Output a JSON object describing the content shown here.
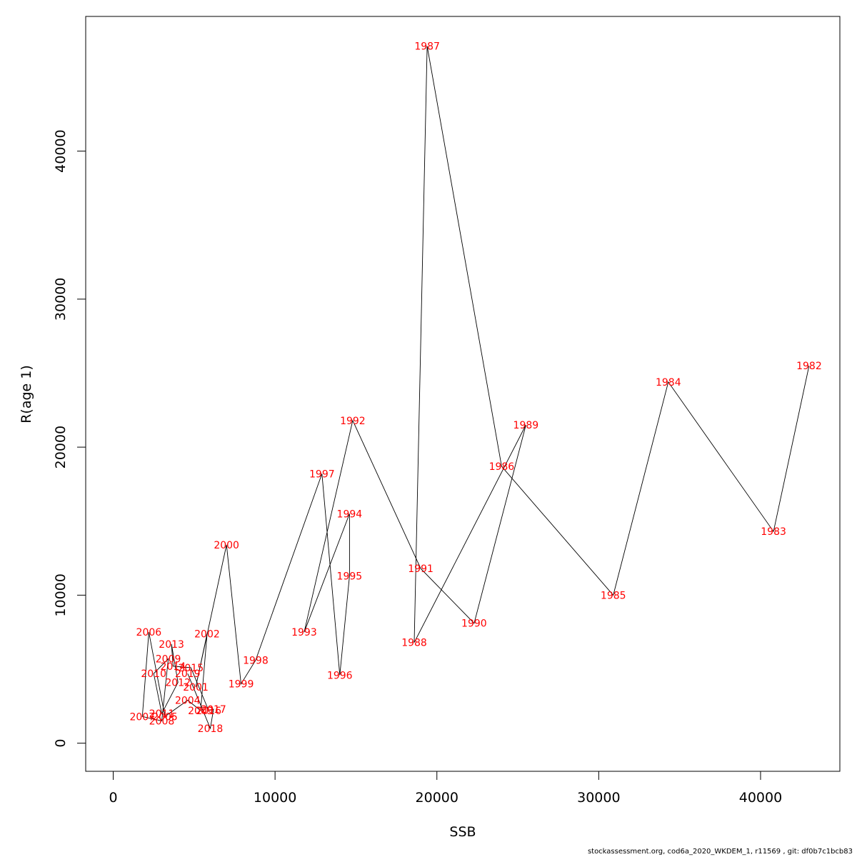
{
  "chart_data": {
    "type": "line",
    "title": "",
    "xlabel": "SSB",
    "ylabel": "R(age 1)",
    "xlim": [
      -1700,
      44900
    ],
    "ylim": [
      -1900,
      49100
    ],
    "xticks": [
      0,
      10000,
      20000,
      30000,
      40000
    ],
    "yticks": [
      0,
      10000,
      20000,
      30000,
      40000
    ],
    "xtick_labels": [
      "0",
      "10000",
      "20000",
      "30000",
      "40000"
    ],
    "ytick_labels": [
      "0",
      "10000",
      "20000",
      "30000",
      "40000"
    ],
    "grid": false,
    "line_color": "#000000",
    "label_color": "#ff0000",
    "points": [
      {
        "year": "1982",
        "x": 43000,
        "y": 25500
      },
      {
        "year": "1983",
        "x": 40800,
        "y": 14300
      },
      {
        "year": "1984",
        "x": 34300,
        "y": 24400
      },
      {
        "year": "1985",
        "x": 30900,
        "y": 10000
      },
      {
        "year": "1986",
        "x": 24000,
        "y": 18700
      },
      {
        "year": "1987",
        "x": 19400,
        "y": 47100
      },
      {
        "year": "1988",
        "x": 18600,
        "y": 6800
      },
      {
        "year": "1989",
        "x": 25500,
        "y": 21500
      },
      {
        "year": "1990",
        "x": 22300,
        "y": 8100
      },
      {
        "year": "1991",
        "x": 19000,
        "y": 11800
      },
      {
        "year": "1992",
        "x": 14800,
        "y": 21800
      },
      {
        "year": "1993",
        "x": 11800,
        "y": 7500
      },
      {
        "year": "1994",
        "x": 14600,
        "y": 15500
      },
      {
        "year": "1995",
        "x": 14600,
        "y": 11300
      },
      {
        "year": "1996",
        "x": 14000,
        "y": 4600
      },
      {
        "year": "1997",
        "x": 12900,
        "y": 18200
      },
      {
        "year": "1998",
        "x": 8800,
        "y": 5600
      },
      {
        "year": "1999",
        "x": 7900,
        "y": 4000
      },
      {
        "year": "2000",
        "x": 7000,
        "y": 13400
      },
      {
        "year": "2001",
        "x": 5100,
        "y": 3800
      },
      {
        "year": "2002",
        "x": 5800,
        "y": 7400
      },
      {
        "year": "2003",
        "x": 5400,
        "y": 2200
      },
      {
        "year": "2004",
        "x": 4600,
        "y": 2900
      },
      {
        "year": "2005",
        "x": 3200,
        "y": 1800
      },
      {
        "year": "2006",
        "x": 2200,
        "y": 7500
      },
      {
        "year": "2007",
        "x": 1800,
        "y": 1800
      },
      {
        "year": "2008",
        "x": 3000,
        "y": 1500
      },
      {
        "year": "2009",
        "x": 3400,
        "y": 5700
      },
      {
        "year": "2010",
        "x": 2500,
        "y": 4700
      },
      {
        "year": "2011",
        "x": 3000,
        "y": 2000
      },
      {
        "year": "2012",
        "x": 4000,
        "y": 4100
      },
      {
        "year": "2013",
        "x": 3600,
        "y": 6700
      },
      {
        "year": "2014",
        "x": 3700,
        "y": 5200
      },
      {
        "year": "2015",
        "x": 4800,
        "y": 5100
      },
      {
        "year": "2016",
        "x": 5900,
        "y": 2200
      },
      {
        "year": "2017",
        "x": 6200,
        "y": 2300
      },
      {
        "year": "2018",
        "x": 6000,
        "y": 1000
      },
      {
        "year": "2019",
        "x": 4600,
        "y": 4700
      }
    ]
  },
  "footer": {
    "text": "stockassessment.org, cod6a_2020_WKDEM_1, r11569 , git: df0b7c1bcb83"
  }
}
